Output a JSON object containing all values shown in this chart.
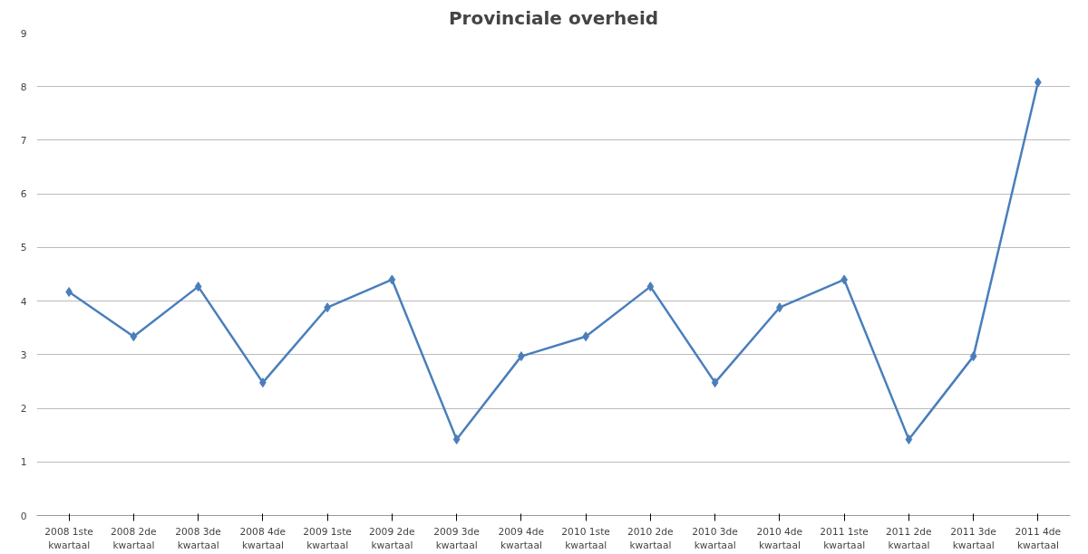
{
  "chart_data": {
    "type": "line",
    "title": "Provinciale overheid",
    "categories": [
      "2008 1ste kwartaal",
      "2008 2de kwartaal",
      "2008 3de kwartaal",
      "2008 4de kwartaal",
      "2009 1ste kwartaal",
      "2009 2de kwartaal",
      "2009 3de kwartaal",
      "2009 4de kwartaal",
      "2010 1ste kwartaal",
      "2010 2de kwartaal",
      "2010 3de kwartaal",
      "2010 4de kwartaal",
      "2011 1ste kwartaal",
      "2011 2de kwartaal",
      "2011 3de kwartaal",
      "2011 4de kwartaal"
    ],
    "series": [
      {
        "color": "#4a7ebb",
        "values": [
          4.17,
          3.34,
          4.27,
          2.48,
          3.88,
          4.4,
          1.42,
          2.97,
          3.34,
          4.27,
          2.48,
          3.88,
          4.4,
          1.42,
          2.97,
          8.08
        ]
      }
    ],
    "ylim": [
      0,
      9
    ],
    "yticks": [
      0,
      1,
      2,
      3,
      4,
      5,
      6,
      7,
      8,
      9
    ],
    "grid": "y",
    "marker": "diamond",
    "line_style": "solid"
  }
}
